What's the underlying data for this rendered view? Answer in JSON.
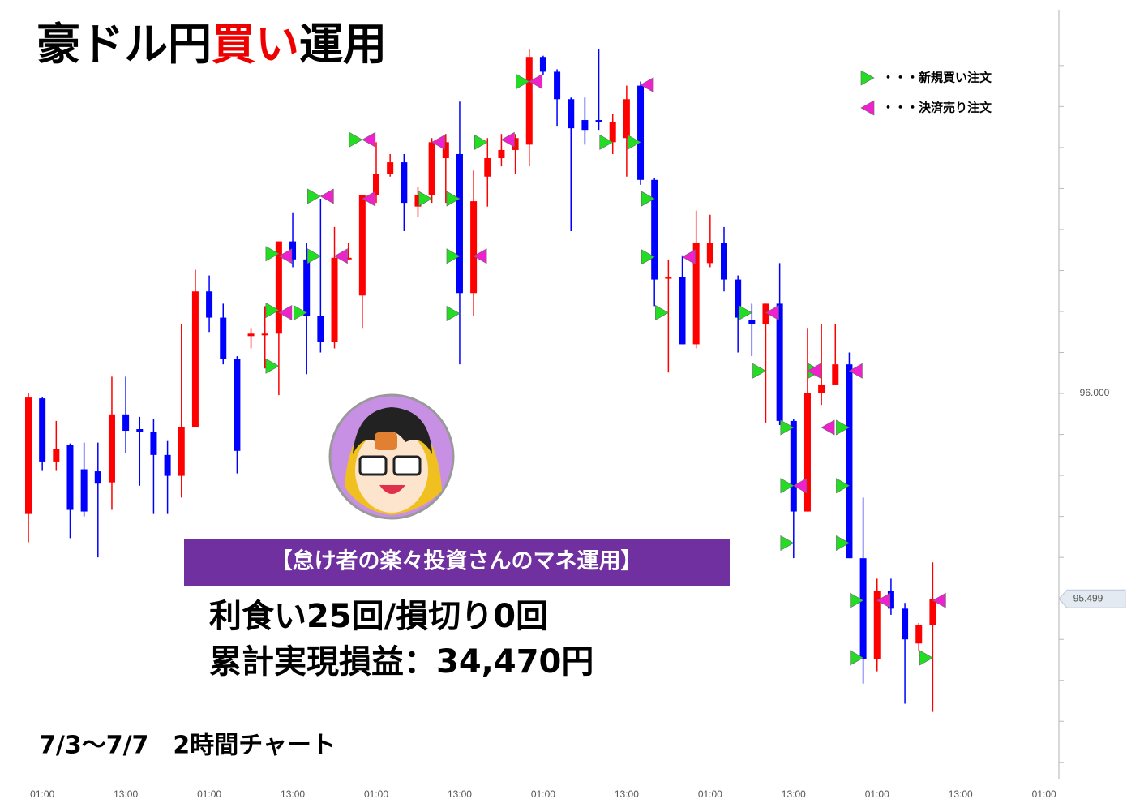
{
  "chart_data": {
    "type": "candlestick",
    "title_parts": [
      "豪ドル円",
      "買い",
      "運用"
    ],
    "title_colors": [
      "#000000",
      "#ee0000",
      "#000000"
    ],
    "legend": {
      "buy": "・・・新規買い注文",
      "sell": "・・・決済売り注文"
    },
    "banner": "【怠け者の楽々投資さんのマネ運用】",
    "stats": [
      "利食い25回/損切り0回",
      "累計実現損益：34,470円"
    ],
    "period": "7/3〜7/7　2時間チャート",
    "up_color": "#ff0000",
    "down_color": "#0000ff",
    "buy_color": "#22dd22",
    "sell_color": "#ee22cc",
    "banner_color": "#7030a0",
    "categories": [
      null,
      "01:00",
      null,
      null,
      null,
      null,
      null,
      "13:00",
      null,
      null,
      null,
      null,
      null,
      "01:00",
      null,
      null,
      null,
      null,
      null,
      "13:00",
      null,
      null,
      null,
      null,
      null,
      "01:00",
      null,
      null,
      null,
      null,
      null,
      "13:00",
      null,
      null,
      null,
      null,
      null,
      "01:00",
      null,
      null,
      null,
      null,
      null,
      "13:00",
      null,
      null,
      null,
      null,
      null,
      "01:00",
      null,
      null,
      null,
      null,
      null,
      "13:00",
      null,
      null,
      null,
      null,
      null,
      "01:00",
      null,
      null,
      null,
      null,
      null,
      "13:00",
      null,
      null,
      null,
      null,
      null,
      "01:00"
    ],
    "open": [
      95.706,
      95.988,
      95.834,
      95.874,
      95.815,
      95.81,
      95.783,
      95.949,
      95.913,
      95.907,
      95.85,
      95.799,
      95.917,
      96.249,
      96.185,
      96.085,
      96.14,
      96.142,
      96.146,
      96.371,
      96.327,
      96.189,
      96.126,
      96.327,
      96.239,
      96.485,
      96.535,
      96.564,
      96.456,
      96.485,
      96.574,
      96.584,
      96.245,
      96.529,
      96.574,
      96.594,
      96.607,
      96.821,
      96.785,
      96.718,
      96.667,
      96.667,
      96.613,
      96.623,
      96.751,
      96.521,
      96.28,
      96.284,
      96.12,
      96.318,
      96.367,
      96.278,
      96.18,
      96.17,
      96.219,
      95.933,
      95.712,
      96.002,
      96.022,
      96.071,
      95.598,
      95.351,
      95.519,
      95.475,
      95.39,
      95.436,
      null,
      null,
      null,
      null,
      null,
      null,
      null,
      null
    ],
    "high": [
      96.002,
      95.992,
      95.933,
      95.878,
      95.88,
      95.88,
      96.041,
      96.041,
      95.943,
      95.937,
      95.884,
      96.17,
      96.302,
      96.288,
      96.219,
      96.091,
      96.16,
      96.213,
      96.371,
      96.442,
      96.367,
      96.475,
      96.406,
      96.367,
      96.485,
      96.613,
      96.584,
      96.584,
      96.505,
      96.623,
      96.633,
      96.712,
      96.544,
      96.623,
      96.633,
      96.633,
      96.84,
      96.824,
      96.791,
      96.722,
      96.722,
      96.84,
      96.682,
      96.751,
      96.761,
      96.525,
      96.327,
      96.337,
      96.446,
      96.436,
      96.406,
      96.288,
      96.219,
      96.219,
      96.318,
      95.937,
      96.16,
      96.17,
      96.17,
      96.1,
      95.746,
      95.548,
      95.548,
      95.489,
      95.44,
      95.588,
      null,
      null,
      null,
      null,
      null,
      null,
      null,
      null
    ],
    "low": [
      95.637,
      95.811,
      95.811,
      95.647,
      95.7,
      95.6,
      95.716,
      95.854,
      95.775,
      95.706,
      95.706,
      95.746,
      95.917,
      96.15,
      96.071,
      95.805,
      96.11,
      96.061,
      95.996,
      96.308,
      96.047,
      96.1,
      96.11,
      96.327,
      96.16,
      96.465,
      96.529,
      96.396,
      96.43,
      96.465,
      96.465,
      96.071,
      96.189,
      96.456,
      96.554,
      96.535,
      96.554,
      96.777,
      96.653,
      96.396,
      96.607,
      96.643,
      96.584,
      96.529,
      96.509,
      96.213,
      96.051,
      96.12,
      96.11,
      96.308,
      96.249,
      96.1,
      96.091,
      95.929,
      95.923,
      95.598,
      95.712,
      95.972,
      96.022,
      95.598,
      95.292,
      95.322,
      95.46,
      95.243,
      95.371,
      95.223,
      null,
      null,
      null,
      null,
      null,
      null,
      null,
      null
    ],
    "close": [
      95.99,
      95.834,
      95.864,
      95.716,
      95.712,
      95.78,
      95.949,
      95.909,
      95.907,
      95.85,
      95.799,
      95.917,
      96.249,
      96.185,
      96.085,
      95.86,
      96.146,
      96.146,
      96.371,
      96.327,
      96.189,
      96.126,
      96.331,
      96.331,
      96.485,
      96.535,
      96.564,
      96.465,
      96.485,
      96.613,
      96.613,
      96.245,
      96.469,
      96.574,
      96.594,
      96.623,
      96.821,
      96.785,
      96.718,
      96.647,
      96.643,
      96.663,
      96.663,
      96.718,
      96.521,
      96.278,
      96.284,
      96.12,
      96.367,
      96.367,
      96.278,
      96.185,
      96.17,
      96.219,
      95.933,
      95.712,
      96.002,
      96.022,
      96.071,
      95.598,
      95.351,
      95.519,
      95.475,
      95.4,
      95.436,
      95.499,
      null,
      null,
      null,
      null,
      null,
      null,
      null,
      null
    ],
    "buy_signals": {
      "x": [
        18,
        18,
        18,
        20,
        21,
        21,
        24,
        29,
        31,
        31,
        31,
        33,
        36,
        42,
        44,
        45,
        45,
        46,
        52,
        53,
        55,
        55,
        55,
        57,
        59,
        59,
        59,
        60,
        60,
        65
      ],
      "y": [
        96.067,
        96.203,
        96.341,
        96.197,
        96.335,
        96.481,
        96.619,
        96.475,
        96.475,
        96.335,
        96.195,
        96.613,
        96.761,
        96.613,
        96.613,
        96.475,
        96.333,
        96.197,
        96.197,
        96.055,
        95.917,
        95.775,
        95.635,
        96.055,
        95.917,
        95.775,
        95.635,
        95.495,
        95.355,
        95.355
      ]
    },
    "sell_signals": {
      "x": [
        18,
        18,
        21,
        22,
        24,
        24,
        29,
        32,
        34,
        36,
        44,
        47,
        53,
        55,
        56,
        57,
        59,
        61,
        65
      ],
      "y": [
        96.335,
        96.197,
        96.481,
        96.335,
        96.619,
        96.475,
        96.613,
        96.335,
        96.619,
        96.761,
        96.753,
        96.333,
        96.197,
        95.775,
        96.055,
        95.917,
        96.055,
        95.495,
        95.495
      ]
    },
    "ylim": [
      95.06,
      96.96
    ],
    "yticks": [
      {
        "value": 96,
        "label": "96.000"
      }
    ],
    "minor_yticks": [
      95.1,
      95.2,
      95.3,
      95.4,
      95.5,
      95.6,
      95.7,
      95.8,
      95.9,
      96.1,
      96.2,
      96.3,
      96.4,
      96.5,
      96.6,
      96.7,
      96.8
    ],
    "last_price": 95.499
  }
}
